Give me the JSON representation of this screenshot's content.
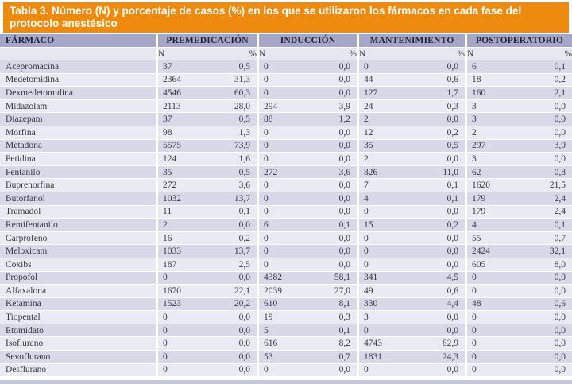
{
  "title": "Tabla 3. Número (N) y porcentaje de casos (%) en los que se utilizaron los fármacos en cada fase del protocolo anestésico",
  "colors": {
    "title_bar_bg": "#EE8B0F",
    "title_text": "#FFFFFF",
    "header_bg": "#A6A6C9",
    "row_dark": "#D8D8E8",
    "row_light": "#EAEAF4",
    "subheader_bg": "#E7E7F1",
    "footer_strip": "#C6C6DB"
  },
  "table": {
    "drug_column_header": "FÁRMACO",
    "phase_headers": [
      "PREMEDICACIÓN",
      "INDUCCIÓN",
      "MANTENIMIENTO",
      "POSTOPERATORIO"
    ],
    "subheaders": {
      "n": "N",
      "pct": "%"
    },
    "rows": [
      {
        "drug": "Acepromacina",
        "values": [
          "37",
          "0,5",
          "0",
          "0,0",
          "0",
          "0,0",
          "6",
          "0,1"
        ]
      },
      {
        "drug": "Medetomidina",
        "values": [
          "2364",
          "31,3",
          "0",
          "0,0",
          "44",
          "0,6",
          "18",
          "0,2"
        ]
      },
      {
        "drug": "Dexmedetomidina",
        "values": [
          "4546",
          "60,3",
          "0",
          "0,0",
          "127",
          "1,7",
          "160",
          "2,1"
        ]
      },
      {
        "drug": "Midazolam",
        "values": [
          "2113",
          "28,0",
          "294",
          "3,9",
          "24",
          "0,3",
          "3",
          "0,0"
        ]
      },
      {
        "drug": "Diazepam",
        "values": [
          "37",
          "0,5",
          "88",
          "1,2",
          "2",
          "0,0",
          "3",
          "0,0"
        ]
      },
      {
        "drug": "Morfina",
        "values": [
          "98",
          "1,3",
          "0",
          "0,0",
          "12",
          "0,2",
          "2",
          "0,0"
        ]
      },
      {
        "drug": "Metadona",
        "values": [
          "5575",
          "73,9",
          "0",
          "0,0",
          "35",
          "0,5",
          "297",
          "3,9"
        ]
      },
      {
        "drug": "Petidina",
        "values": [
          "124",
          "1,6",
          "0",
          "0,0",
          "2",
          "0,0",
          "3",
          "0,0"
        ]
      },
      {
        "drug": "Fentanilo",
        "values": [
          "35",
          "0,5",
          "272",
          "3,6",
          "826",
          "11,0",
          "62",
          "0,8"
        ]
      },
      {
        "drug": "Buprenorfina",
        "values": [
          "272",
          "3,6",
          "0",
          "0,0",
          "7",
          "0,1",
          "1620",
          "21,5"
        ]
      },
      {
        "drug": "Butorfanol",
        "values": [
          "1032",
          "13,7",
          "0",
          "0,0",
          "4",
          "0,1",
          "179",
          "2,4"
        ]
      },
      {
        "drug": "Tramadol",
        "values": [
          "11",
          "0,1",
          "0",
          "0,0",
          "0",
          "0,0",
          "179",
          "2,4"
        ]
      },
      {
        "drug": "Remifentanilo",
        "values": [
          "2",
          "0,0",
          "6",
          "0,1",
          "15",
          "0,2",
          "4",
          "0,1"
        ]
      },
      {
        "drug": "Carprofeno",
        "values": [
          "16",
          "0,2",
          "0",
          "0,0",
          "0",
          "0,0",
          "55",
          "0,7"
        ]
      },
      {
        "drug": "Meloxicam",
        "values": [
          "1033",
          "13,7",
          "0",
          "0,0",
          "0",
          "0,0",
          "2424",
          "32,1"
        ]
      },
      {
        "drug": "Coxibs",
        "values": [
          "187",
          "2,5",
          "0",
          "0,0",
          "0",
          "0,0",
          "605",
          "8,0"
        ]
      },
      {
        "drug": "Propofol",
        "values": [
          "0",
          "0,0",
          "4382",
          "58,1",
          "341",
          "4,5",
          "0",
          "0,0"
        ]
      },
      {
        "drug": "Alfaxalona",
        "values": [
          "1670",
          "22,1",
          "2039",
          "27,0",
          "49",
          "0,6",
          "0",
          "0,0"
        ]
      },
      {
        "drug": "Ketamina",
        "values": [
          "1523",
          "20,2",
          "610",
          "8,1",
          "330",
          "4,4",
          "48",
          "0,6"
        ]
      },
      {
        "drug": "Tiopental",
        "values": [
          "0",
          "0,0",
          "19",
          "0,3",
          "3",
          "0,0",
          "0",
          "0,0"
        ]
      },
      {
        "drug": "Etomidato",
        "values": [
          "0",
          "0,0",
          "5",
          "0,1",
          "0",
          "0,0",
          "0",
          "0,0"
        ]
      },
      {
        "drug": "Isoflurano",
        "values": [
          "0",
          "0,0",
          "616",
          "8,2",
          "4743",
          "62,9",
          "0",
          "0,0"
        ]
      },
      {
        "drug": "Sevoflurano",
        "values": [
          "0",
          "0,0",
          "53",
          "0,7",
          "1831",
          "24,3",
          "0",
          "0,0"
        ]
      },
      {
        "drug": "Desflurano",
        "values": [
          "0",
          "0,0",
          "0",
          "0,0",
          "0",
          "0,0",
          "0",
          "0,0"
        ]
      }
    ]
  }
}
